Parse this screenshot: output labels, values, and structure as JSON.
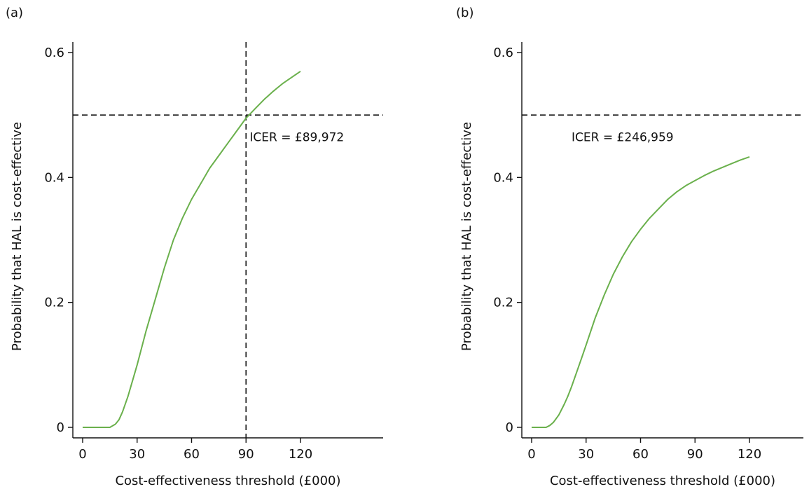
{
  "chart_data": [
    {
      "type": "line",
      "panel_label": "(a)",
      "xlabel": "Cost-effectiveness threshold (£000)",
      "ylabel": "Probability that HAL is cost-effective",
      "xlim": [
        0,
        150
      ],
      "ylim": [
        0,
        0.6
      ],
      "x_ticks": [
        0,
        30,
        60,
        90,
        120
      ],
      "x_tick_labels": [
        "0",
        "30",
        "60",
        "90",
        "120"
      ],
      "y_ticks": [
        0,
        0.2,
        0.4,
        0.6
      ],
      "y_tick_labels": [
        "0",
        "0.2",
        "0.4",
        "0.6"
      ],
      "grid": false,
      "series": [
        {
          "color": "#6ab04c",
          "x": [
            0,
            10,
            15,
            18,
            20,
            22,
            25,
            28,
            30,
            35,
            40,
            45,
            50,
            55,
            60,
            65,
            70,
            75,
            80,
            85,
            90,
            95,
            100,
            105,
            110,
            115,
            120
          ],
          "y": [
            0,
            0,
            0,
            0.005,
            0.012,
            0.025,
            0.05,
            0.08,
            0.1,
            0.155,
            0.205,
            0.255,
            0.3,
            0.335,
            0.365,
            0.39,
            0.415,
            0.435,
            0.455,
            0.475,
            0.495,
            0.51,
            0.525,
            0.538,
            0.55,
            0.56,
            0.57
          ]
        }
      ],
      "reference_lines": [
        {
          "orientation": "horizontal",
          "value": 0.5,
          "style": "dashed"
        },
        {
          "orientation": "vertical",
          "value": 90,
          "style": "dashed"
        }
      ],
      "annotations": [
        {
          "text": "ICER = £89,972",
          "x": 92,
          "y": 0.465
        }
      ]
    },
    {
      "type": "line",
      "panel_label": "(b)",
      "xlabel": "Cost-effectiveness threshold (£000)",
      "ylabel": "Probability that HAL is cost-effective",
      "xlim": [
        0,
        150
      ],
      "ylim": [
        0,
        0.6
      ],
      "x_ticks": [
        0,
        30,
        60,
        90,
        120
      ],
      "x_tick_labels": [
        "0",
        "30",
        "60",
        "90",
        "120"
      ],
      "y_ticks": [
        0,
        0.2,
        0.4,
        0.6
      ],
      "y_tick_labels": [
        "0",
        "0.2",
        "0.4",
        "0.6"
      ],
      "grid": false,
      "series": [
        {
          "color": "#6ab04c",
          "x": [
            0,
            5,
            8,
            10,
            12,
            15,
            18,
            20,
            22,
            25,
            28,
            30,
            35,
            40,
            45,
            50,
            55,
            60,
            65,
            70,
            75,
            80,
            85,
            90,
            95,
            100,
            105,
            110,
            115,
            120
          ],
          "y": [
            0,
            0,
            0,
            0.003,
            0.008,
            0.02,
            0.037,
            0.05,
            0.065,
            0.09,
            0.115,
            0.132,
            0.175,
            0.212,
            0.245,
            0.273,
            0.297,
            0.317,
            0.335,
            0.35,
            0.365,
            0.377,
            0.387,
            0.395,
            0.403,
            0.41,
            0.416,
            0.422,
            0.428,
            0.433
          ]
        }
      ],
      "reference_lines": [
        {
          "orientation": "horizontal",
          "value": 0.5,
          "style": "dashed"
        }
      ],
      "annotations": [
        {
          "text": "ICER = £246,959",
          "x": 22,
          "y": 0.465
        }
      ]
    }
  ]
}
